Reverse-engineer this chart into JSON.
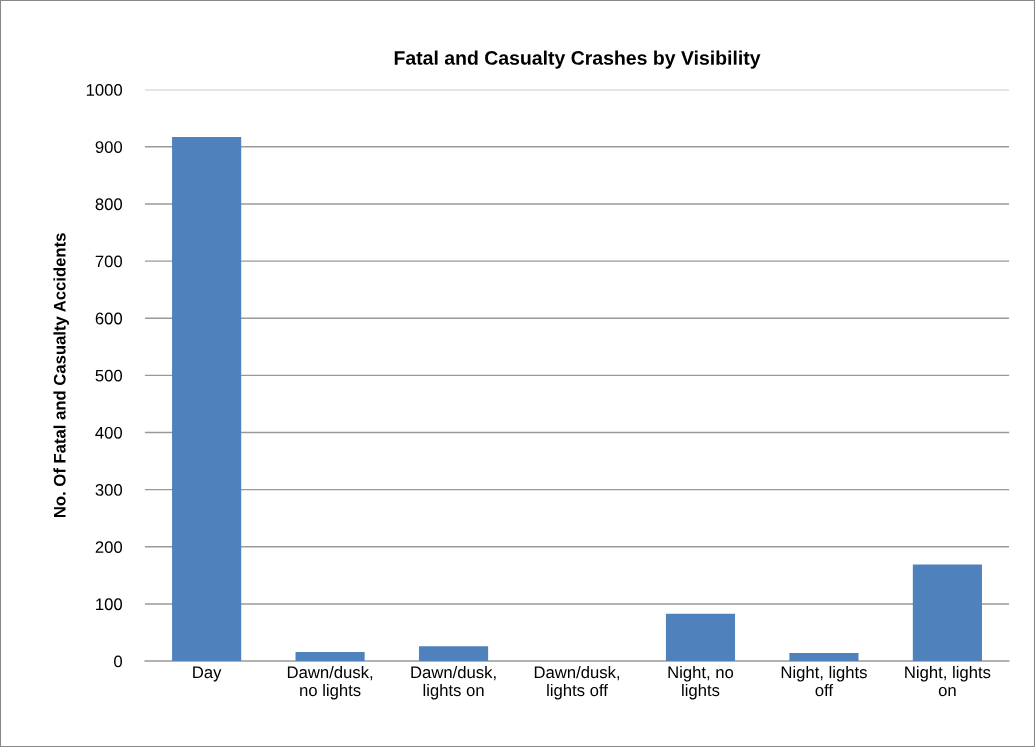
{
  "chart_data": {
    "type": "bar",
    "title": "Fatal and Casualty Crashes by Visibility",
    "ylabel": "No. Of Fatal and Casualty Accidents",
    "categories": [
      "Day",
      "Dawn/dusk,\nno lights",
      "Dawn/dusk,\nlights on",
      "Dawn/dusk,\nlights off",
      "Night, no\nlights",
      "Night, lights\noff",
      "Night, lights\non"
    ],
    "values": [
      917,
      16,
      26,
      0,
      83,
      14,
      169
    ],
    "color": "#4f81bd",
    "ylim": [
      0,
      1000
    ],
    "yticks": [
      0,
      100,
      200,
      300,
      400,
      500,
      600,
      700,
      800,
      900,
      1000
    ],
    "grid": "y"
  }
}
